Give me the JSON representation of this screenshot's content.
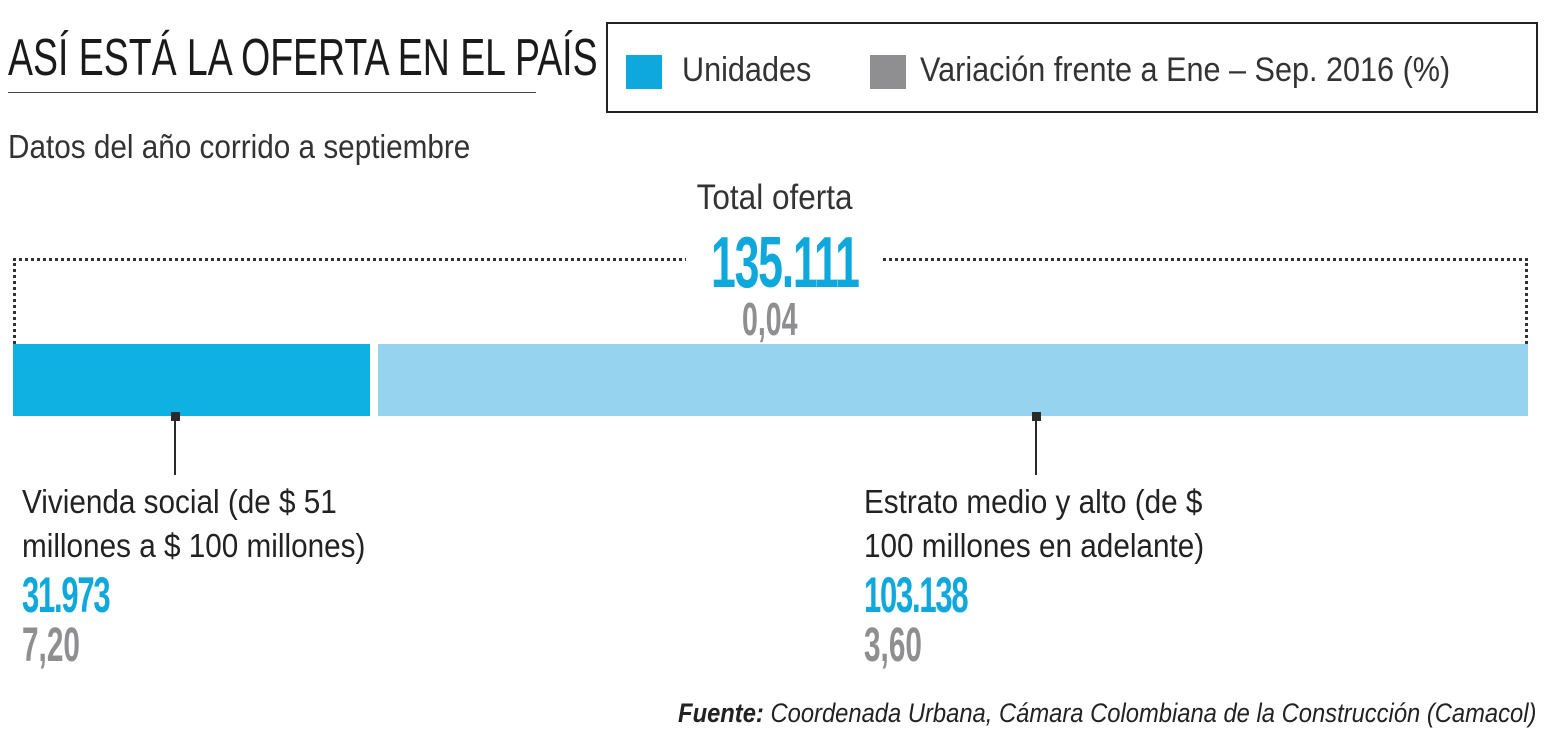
{
  "header": {
    "title": "ASÍ ESTÁ LA OFERTA EN EL PAÍS",
    "subtitle": "Datos del año corrido a septiembre"
  },
  "legend": [
    {
      "label": "Unidades",
      "color": "#0ea8dc"
    },
    {
      "label": "Variación frente a Ene – Sep. 2016 (%)",
      "color": "#8f8f92"
    }
  ],
  "chart_data": {
    "type": "bar",
    "orientation": "horizontal-stacked",
    "title": "Total oferta",
    "total": {
      "units_label": "135.111",
      "units": 135111,
      "variation_label": "0,04",
      "variation": 0.04
    },
    "segments": [
      {
        "name": "Vivienda social (de $ 51 millones a $ 100 millones)",
        "line1": "Vivienda social (de $ 51",
        "line2": "millones a $ 100 millones)",
        "units_label": "31.973",
        "units": 31973,
        "variation_label": "7,20",
        "variation": 7.2,
        "color": "#0eb1e2"
      },
      {
        "name": "Estrato medio y alto (de $ 100 millones en adelante)",
        "line1": "Estrato medio y alto (de $",
        "line2": "100 millones en adelante)",
        "units_label": "103.138",
        "units": 103138,
        "variation_label": "3,60",
        "variation": 3.6,
        "color": "#95d3ef"
      }
    ]
  },
  "source": {
    "label": "Fuente:",
    "text": " Coordenada Urbana, Cámara Colombiana de la Construcción (Camacol)"
  }
}
